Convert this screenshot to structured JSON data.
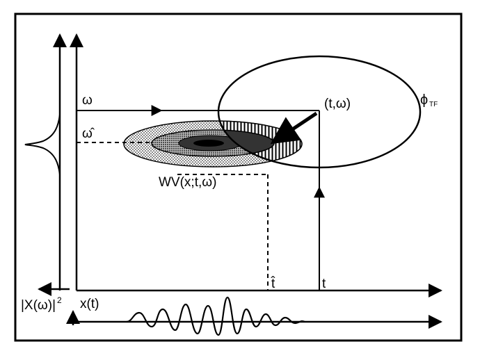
{
  "diagram": {
    "labels": {
      "omega": "ω",
      "omega_hat": "ω̂",
      "point": "(t,ω)",
      "phi": "ϕ",
      "phi_sub": "TF",
      "wv": "WV(x;t,ω)",
      "t_hat": "t̂",
      "t": "t",
      "spectrum": "|X(ω)|",
      "spectrum_exp": "2",
      "signal": "x(t)"
    }
  }
}
